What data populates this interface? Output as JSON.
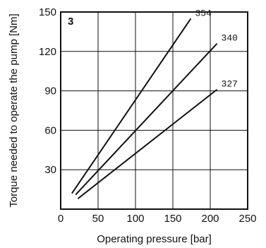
{
  "chart_data": {
    "type": "line",
    "panel_label": "3",
    "xlabel": "Operating pressure [bar]",
    "ylabel": "Torque needed to operate the pump [Nm]",
    "xlim": [
      0,
      250
    ],
    "ylim": [
      0,
      150
    ],
    "x_ticks": [
      "0",
      "50",
      "100",
      "150",
      "200",
      "250"
    ],
    "y_ticks": [
      "30",
      "60",
      "90",
      "120",
      "150"
    ],
    "grid": true,
    "legend": "none",
    "series": [
      {
        "name": "354",
        "x": [
          15,
          174
        ],
        "y": [
          12,
          145
        ]
      },
      {
        "name": "340",
        "x": [
          20,
          209
        ],
        "y": [
          11,
          126
        ]
      },
      {
        "name": "327",
        "x": [
          23,
          209
        ],
        "y": [
          8,
          91
        ]
      }
    ]
  }
}
